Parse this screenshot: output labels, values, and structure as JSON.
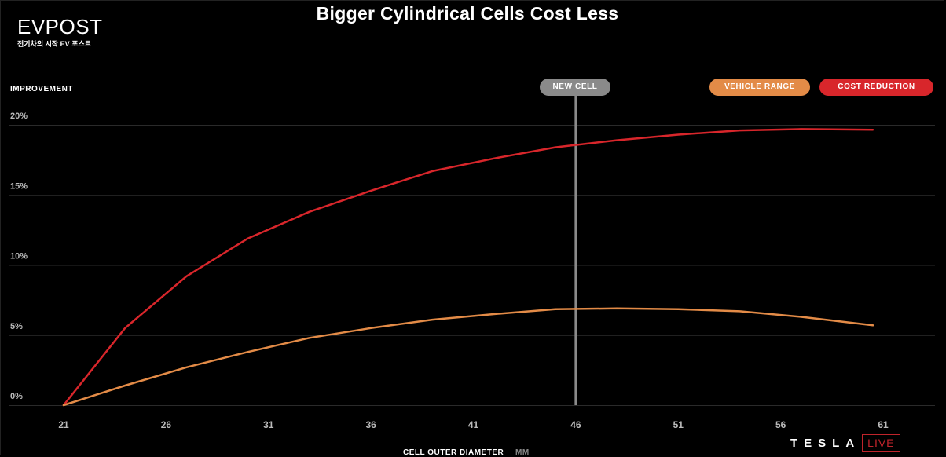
{
  "watermark": {
    "logo": "EVPOST",
    "tagline": "전기차의 시작 EV 포스트"
  },
  "branding": {
    "tesla": "TESLA",
    "live": "LIVE"
  },
  "colors": {
    "background": "#000000",
    "cost_reduction": "#d8262b",
    "vehicle_range": "#e38b47",
    "new_cell": "#8a8a8a",
    "grid": "#2a2a2a",
    "tick_text": "#bbbbbb"
  },
  "chart_data": {
    "type": "line",
    "title": "Bigger Cylindrical Cells Cost Less",
    "ylabel": "IMPROVEMENT",
    "xlabel": "CELL OUTER DIAMETER",
    "xunit": "MM",
    "xlim": [
      21,
      61
    ],
    "ylim": [
      0,
      20
    ],
    "xticks": [
      21,
      26,
      31,
      36,
      41,
      46,
      51,
      56,
      61
    ],
    "yticks": [
      0,
      5,
      10,
      15,
      20
    ],
    "ytick_labels": [
      "0%",
      "5%",
      "10%",
      "15%",
      "20%"
    ],
    "legend": [
      "VEHICLE RANGE",
      "COST REDUCTION"
    ],
    "legend_position": "top-right",
    "marker": {
      "label": "NEW CELL",
      "x": 46
    },
    "series": [
      {
        "name": "COST REDUCTION",
        "color": "#d8262b",
        "x": [
          21,
          24,
          27,
          30,
          33,
          36,
          39,
          42,
          45,
          48,
          51,
          54,
          57,
          60.5
        ],
        "y": [
          0,
          5.5,
          9.2,
          11.9,
          13.8,
          15.3,
          16.7,
          17.6,
          18.4,
          18.9,
          19.3,
          19.6,
          19.7,
          19.65
        ]
      },
      {
        "name": "VEHICLE RANGE",
        "color": "#e38b47",
        "x": [
          21,
          24,
          27,
          30,
          33,
          36,
          39,
          42,
          45,
          48,
          51,
          54,
          57,
          60.5
        ],
        "y": [
          0,
          1.4,
          2.7,
          3.8,
          4.8,
          5.5,
          6.1,
          6.5,
          6.85,
          6.9,
          6.85,
          6.7,
          6.3,
          5.7
        ]
      }
    ]
  }
}
